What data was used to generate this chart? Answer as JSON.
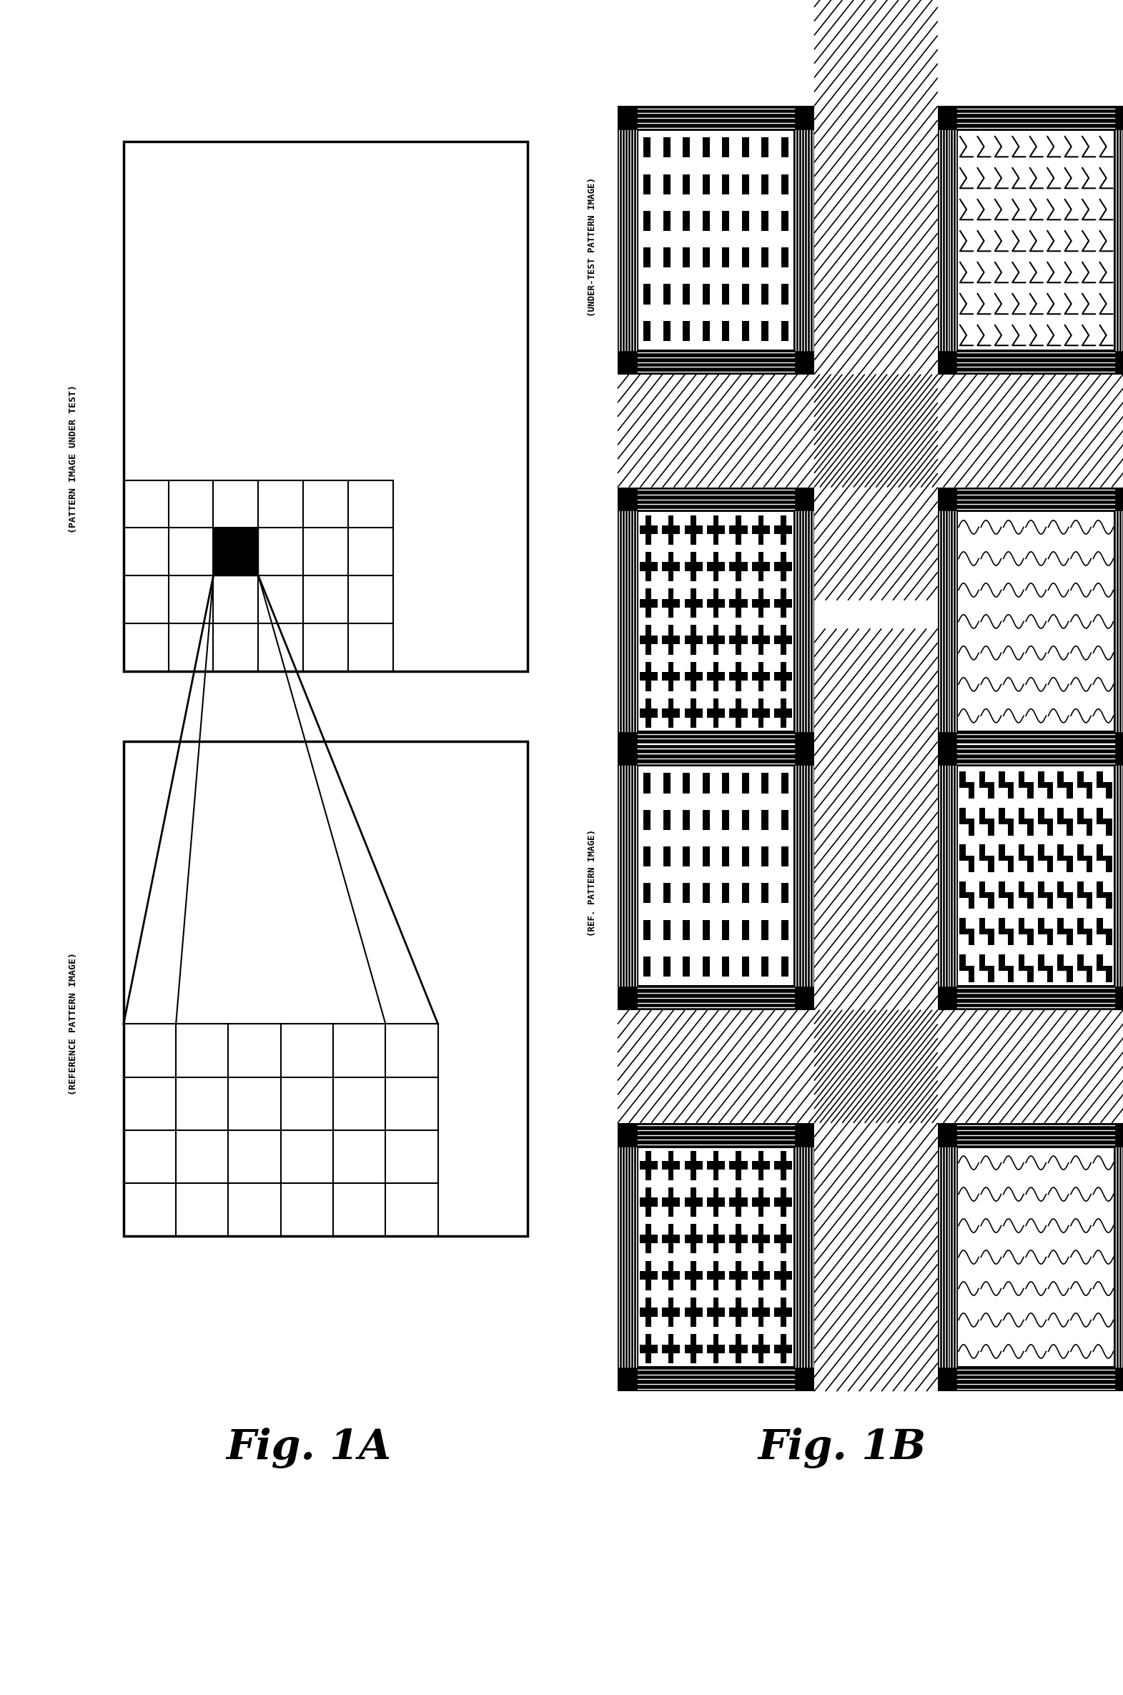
{
  "fig_width": 15.71,
  "fig_height": 23.71,
  "bg_color": "#ffffff",
  "fig1A_label": "Fig. 1A",
  "fig1B_label": "Fig. 1B",
  "top_label": "(PATTERN IMAGE UNDER TEST)",
  "ref_label": "(REFERENCE PATTERN IMAGE)",
  "under_test_label": "(UNDER-TEST PATTERN IMAGE)",
  "ref_pattern_label": "(REF. PATTERN IMAGE)"
}
